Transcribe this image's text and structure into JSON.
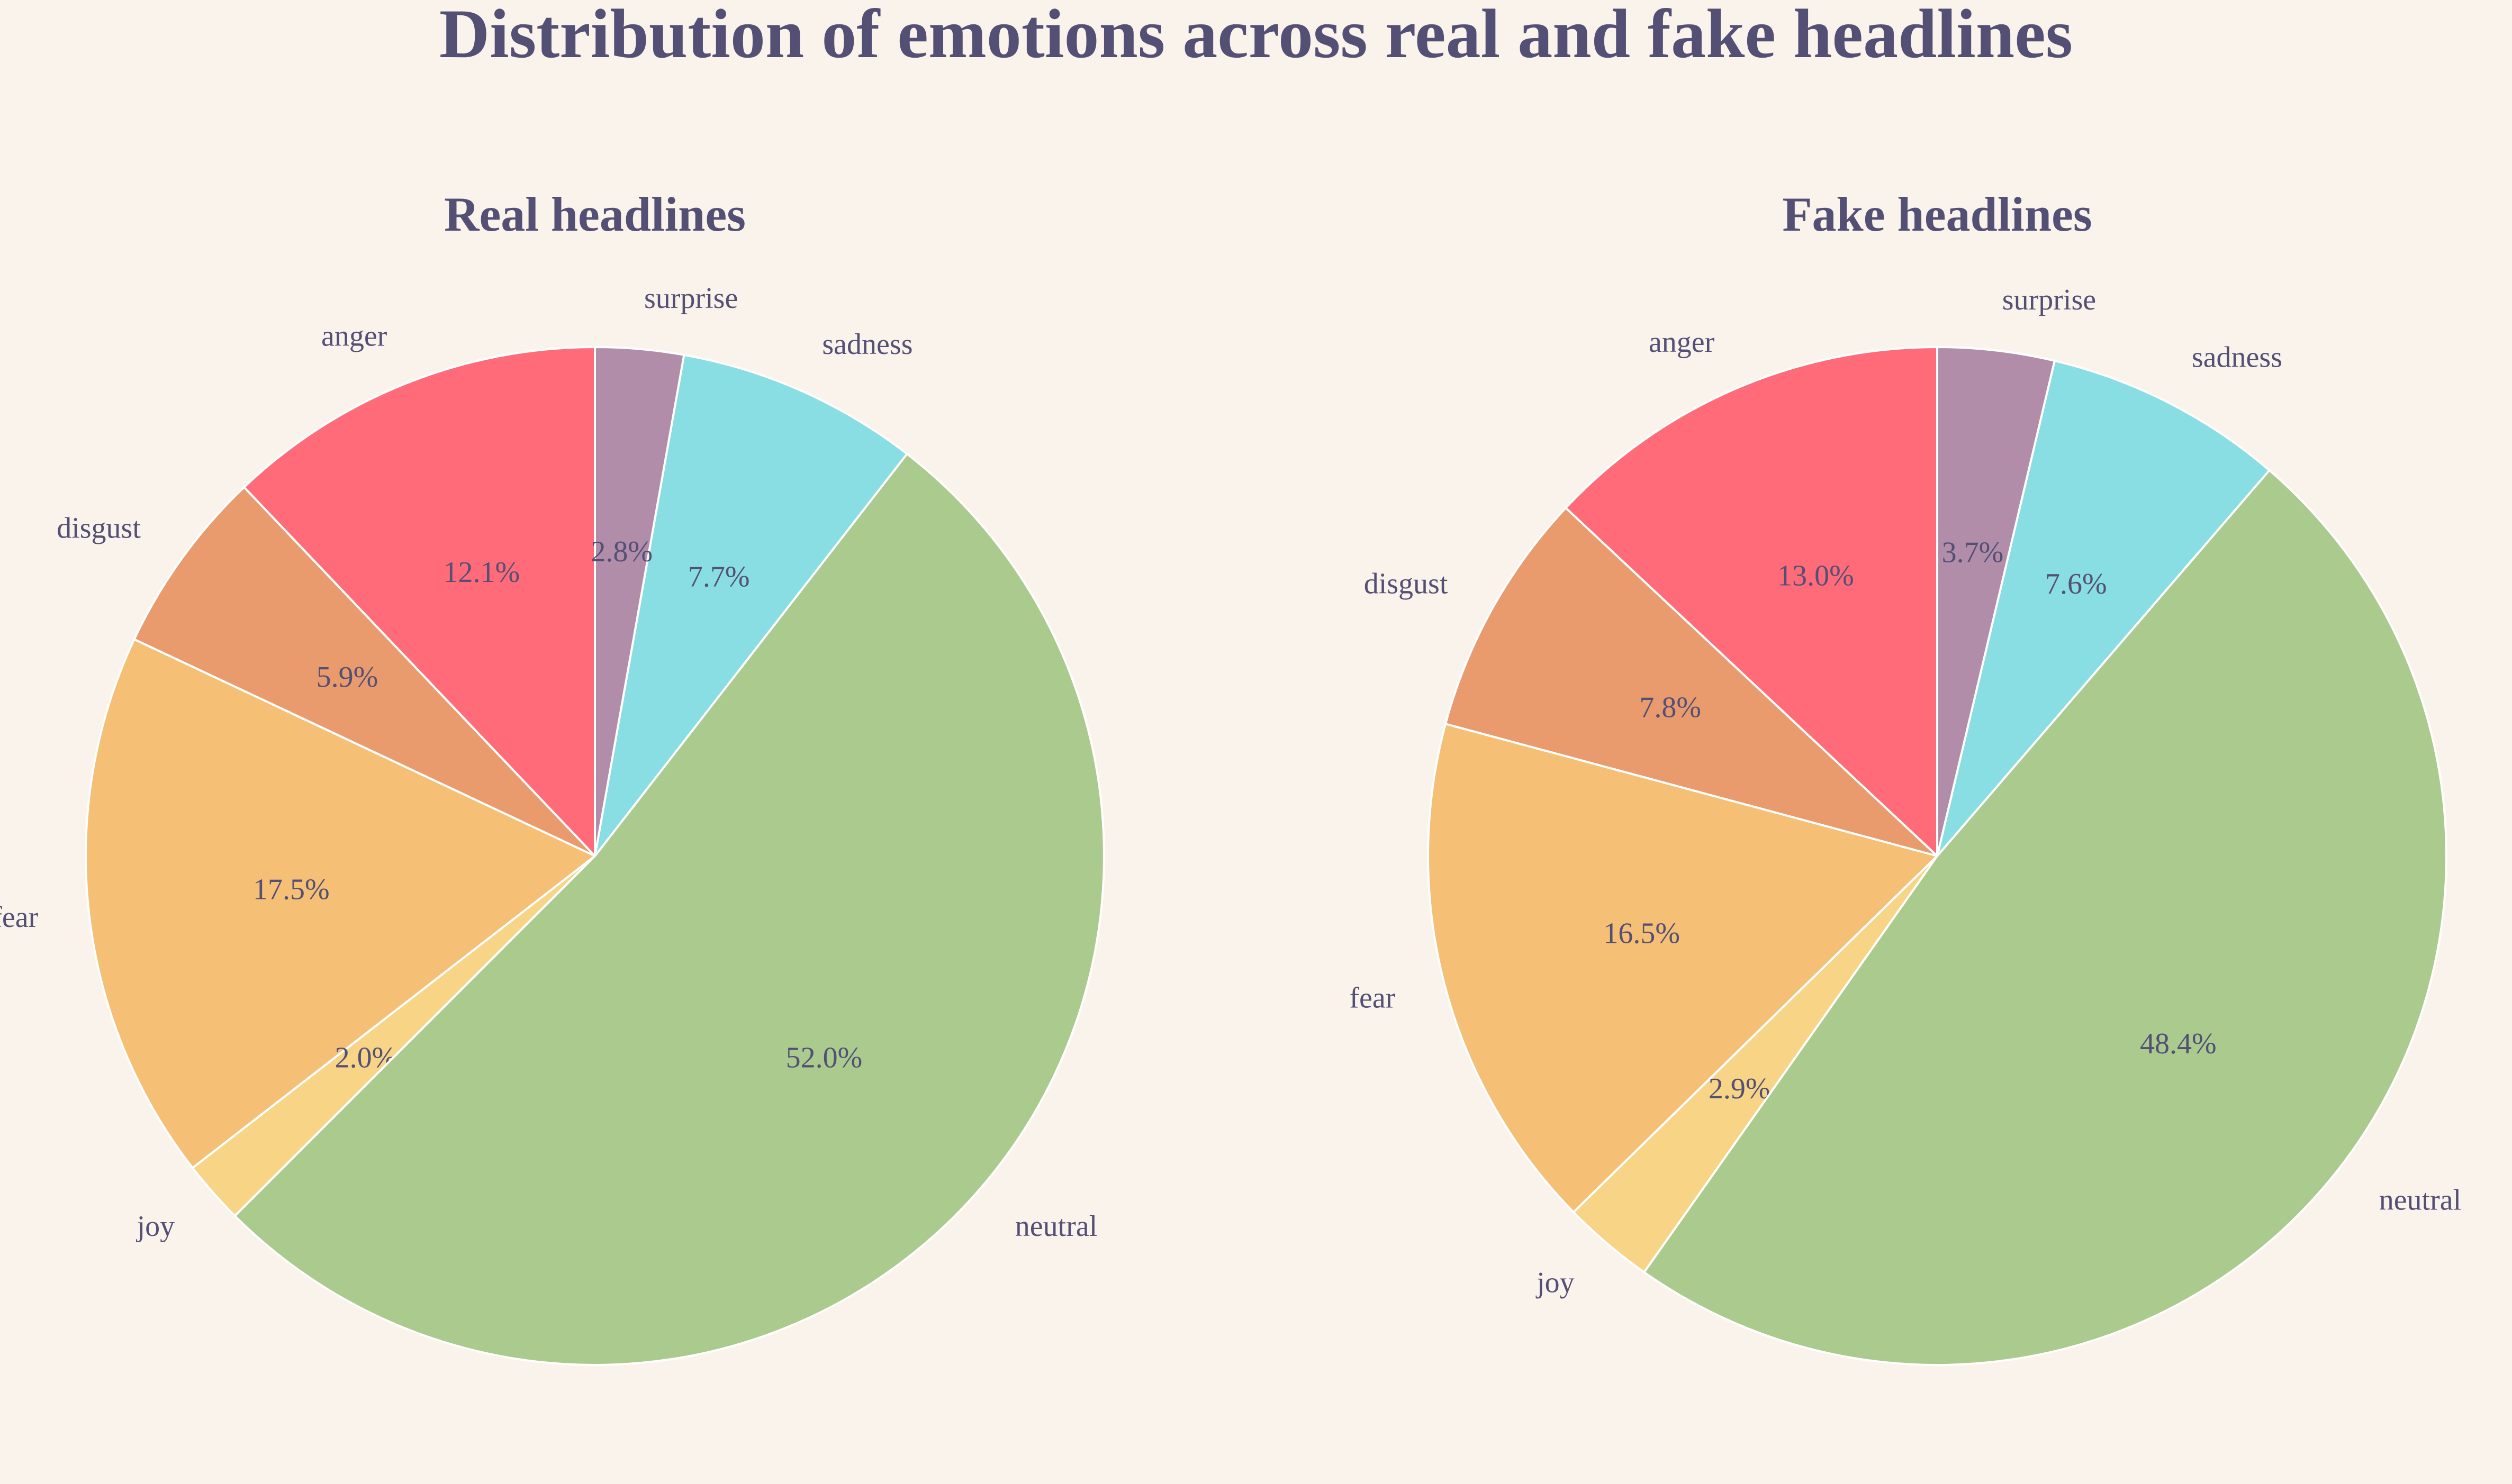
{
  "chart_data": {
    "type": "pie",
    "title": "Distribution of emotions across real and fake headlines",
    "categories": [
      "anger",
      "disgust",
      "fear",
      "joy",
      "neutral",
      "sadness",
      "surprise"
    ],
    "colors": {
      "anger": "#FF6B78",
      "disgust": "#E99B6D",
      "fear": "#F5BF75",
      "joy": "#F8D486",
      "neutral": "#ABCA8D",
      "sadness": "#88DEE2",
      "surprise": "#B28DAA"
    },
    "start_angle": 90,
    "direction": "counterclockwise",
    "pies": [
      {
        "title": "Real headlines",
        "values": [
          12.1,
          5.9,
          17.5,
          2.0,
          52.0,
          7.7,
          2.8
        ],
        "pct_labels": [
          "12.1%",
          "5.9%",
          "17.5%",
          "2.0%",
          "52.0%",
          "7.7%",
          "2.8%"
        ]
      },
      {
        "title": "Fake headlines",
        "values": [
          13.0,
          7.8,
          16.5,
          2.9,
          48.4,
          7.6,
          3.7
        ],
        "pct_labels": [
          "13.0%",
          "7.8%",
          "16.5%",
          "2.9%",
          "48.4%",
          "7.6%",
          "3.7%"
        ]
      }
    ]
  }
}
